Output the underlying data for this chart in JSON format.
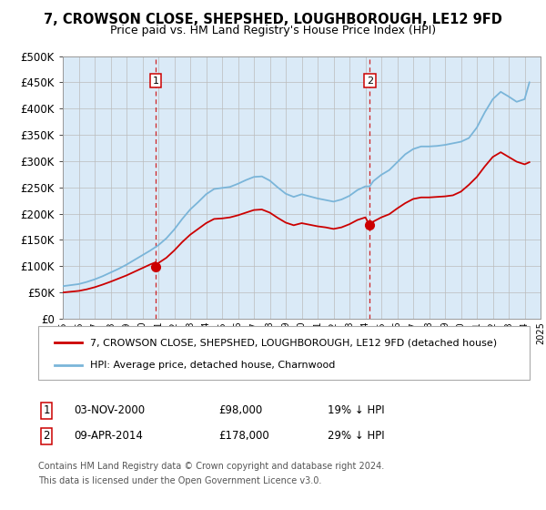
{
  "title": "7, CROWSON CLOSE, SHEPSHED, LOUGHBOROUGH, LE12 9FD",
  "subtitle": "Price paid vs. HM Land Registry's House Price Index (HPI)",
  "plot_bg_color": "#daeaf7",
  "hpi_color": "#7ab5d9",
  "price_color": "#cc0000",
  "dashed_line_color": "#cc0000",
  "ylim": [
    0,
    500000
  ],
  "yticks": [
    0,
    50000,
    100000,
    150000,
    200000,
    250000,
    300000,
    350000,
    400000,
    450000,
    500000
  ],
  "x_start_year": 1995,
  "x_end_year": 2025,
  "transaction1": {
    "date": "03-NOV-2000",
    "price": 98000,
    "label": "1",
    "year": 2000.83
  },
  "transaction2": {
    "date": "09-APR-2014",
    "price": 178000,
    "label": "2",
    "year": 2014.27
  },
  "legend_label_price": "7, CROWSON CLOSE, SHEPSHED, LOUGHBOROUGH, LE12 9FD (detached house)",
  "legend_label_hpi": "HPI: Average price, detached house, Charnwood",
  "footer1": "Contains HM Land Registry data © Crown copyright and database right 2024.",
  "footer2": "This data is licensed under the Open Government Licence v3.0.",
  "table_row1": [
    "1",
    "03-NOV-2000",
    "£98,000",
    "19% ↓ HPI"
  ],
  "table_row2": [
    "2",
    "09-APR-2014",
    "£178,000",
    "29% ↓ HPI"
  ],
  "hpi_years": [
    1995,
    1995.5,
    1996,
    1996.5,
    1997,
    1997.5,
    1998,
    1998.5,
    1999,
    1999.5,
    2000,
    2000.5,
    2001,
    2001.5,
    2002,
    2002.5,
    2003,
    2003.5,
    2004,
    2004.5,
    2005,
    2005.5,
    2006,
    2006.5,
    2007,
    2007.5,
    2008,
    2008.5,
    2009,
    2009.5,
    2010,
    2010.5,
    2011,
    2011.5,
    2012,
    2012.5,
    2013,
    2013.5,
    2014,
    2014.27,
    2014.5,
    2015,
    2015.5,
    2016,
    2016.5,
    2017,
    2017.5,
    2018,
    2018.5,
    2019,
    2019.5,
    2020,
    2020.5,
    2021,
    2021.5,
    2022,
    2022.5,
    2023,
    2023.5,
    2024,
    2024.3
  ],
  "hpi_values": [
    62000,
    64000,
    66000,
    70000,
    75000,
    81000,
    88000,
    95000,
    103000,
    112000,
    121000,
    130000,
    140000,
    153000,
    170000,
    190000,
    208000,
    222000,
    237000,
    247000,
    249000,
    251000,
    257000,
    264000,
    270000,
    271000,
    263000,
    250000,
    238000,
    232000,
    237000,
    233000,
    229000,
    226000,
    223000,
    227000,
    234000,
    245000,
    252000,
    252000,
    262000,
    274000,
    283000,
    298000,
    313000,
    323000,
    328000,
    328000,
    329000,
    331000,
    334000,
    337000,
    344000,
    364000,
    393000,
    418000,
    432000,
    423000,
    413000,
    418000,
    450000
  ],
  "price_years_before": [
    1995,
    1995.5,
    1996,
    1996.5,
    1997,
    1997.5,
    1998,
    1998.5,
    1999,
    1999.5,
    2000,
    2000.5,
    2000.83
  ],
  "price_values_before": [
    50000,
    51500,
    53000,
    56000,
    60000,
    65000,
    70500,
    76500,
    82500,
    89500,
    96500,
    103500,
    107500
  ],
  "price_years_mid": [
    2000.83,
    2001,
    2001.5,
    2002,
    2002.5,
    2003,
    2003.5,
    2004,
    2004.5,
    2005,
    2005.5,
    2006,
    2006.5,
    2007,
    2007.5,
    2008,
    2008.5,
    2009,
    2009.5,
    2010,
    2010.5,
    2011,
    2011.5,
    2012,
    2012.5,
    2013,
    2013.5,
    2014,
    2014.27
  ],
  "price_values_mid": [
    98000,
    106000,
    116000,
    130000,
    146000,
    160000,
    171000,
    182000,
    190000,
    191000,
    193000,
    197000,
    202000,
    207000,
    208000,
    202000,
    192000,
    183000,
    178000,
    182000,
    179000,
    176000,
    174000,
    171000,
    174000,
    180000,
    188000,
    193000,
    178000
  ],
  "price_years_after": [
    2014.27,
    2014.5,
    2015,
    2015.5,
    2016,
    2016.5,
    2017,
    2017.5,
    2018,
    2018.5,
    2019,
    2019.5,
    2020,
    2020.5,
    2021,
    2021.5,
    2022,
    2022.5,
    2023,
    2023.5,
    2024,
    2024.3
  ],
  "price_values_after": [
    178000,
    185000,
    193000,
    199000,
    210000,
    220000,
    228000,
    231000,
    231000,
    232000,
    233000,
    235000,
    242000,
    255000,
    270000,
    290000,
    308000,
    317000,
    308000,
    299000,
    294000,
    298000
  ]
}
